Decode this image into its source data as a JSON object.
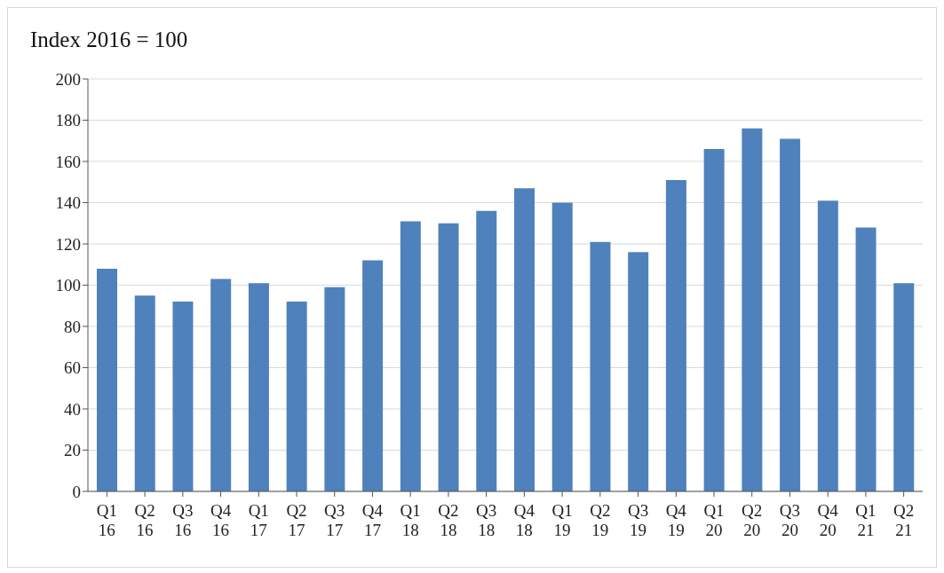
{
  "chart_data": {
    "type": "bar",
    "title": "Index 2016 = 100",
    "categories": [
      "Q1 16",
      "Q2 16",
      "Q3 16",
      "Q4 16",
      "Q1 17",
      "Q2 17",
      "Q3 17",
      "Q4 17",
      "Q1 18",
      "Q2 18",
      "Q3 18",
      "Q4 18",
      "Q1 19",
      "Q2 19",
      "Q3 19",
      "Q4 19",
      "Q1 20",
      "Q2 20",
      "Q3 20",
      "Q4 20",
      "Q1 21",
      "Q2 21"
    ],
    "values": [
      108,
      95,
      92,
      103,
      101,
      92,
      99,
      112,
      131,
      130,
      136,
      147,
      140,
      121,
      116,
      151,
      166,
      176,
      171,
      141,
      128,
      101
    ],
    "color": "#4f81bd",
    "ylim": [
      0,
      200
    ],
    "yticks": [
      0,
      20,
      40,
      60,
      80,
      100,
      120,
      140,
      160,
      180,
      200
    ],
    "grid": "y",
    "legend": false
  }
}
